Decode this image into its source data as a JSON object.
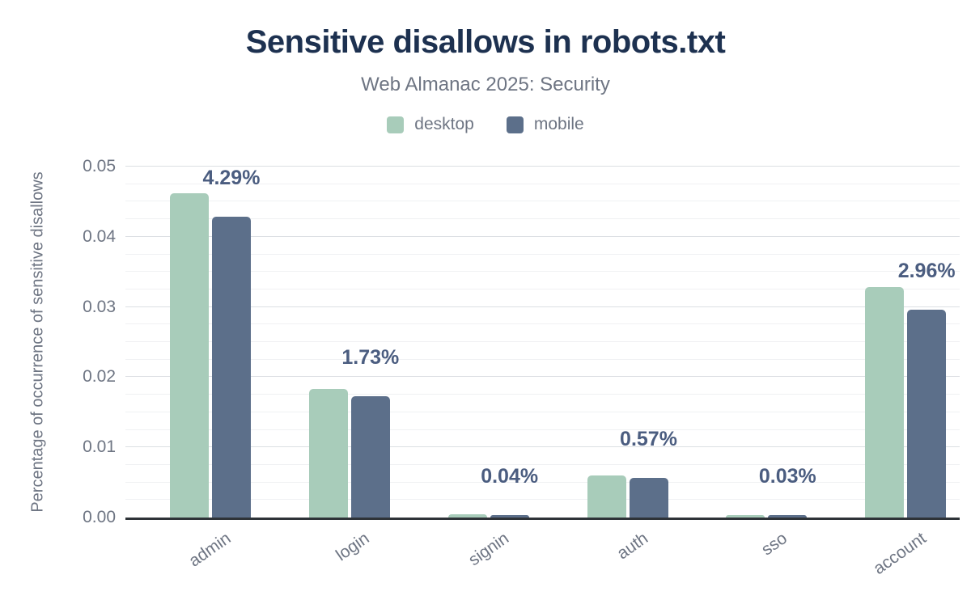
{
  "title": "Sensitive disallows in robots.txt",
  "subtitle": "Web Almanac 2025: Security",
  "y_axis_title": "Percentage of occurrence of sensitive disallows",
  "colors": {
    "title": "#1d3150",
    "subtitle_gray": "#6e7583",
    "value_label": "#4b5d80",
    "axis_line": "#2e3338",
    "gridline_major": "#dcdfe3",
    "gridline_minor": "#f0f1f3",
    "desktop": "#a8ccba",
    "mobile": "#5c6f8a"
  },
  "chart_data": {
    "type": "bar",
    "title": "Sensitive disallows in robots.txt",
    "subtitle": "Web Almanac 2025: Security",
    "xlabel": "",
    "ylabel": "Percentage of occurrence of sensitive disallows",
    "categories": [
      "admin",
      "login",
      "signin",
      "auth",
      "sso",
      "account"
    ],
    "series": [
      {
        "name": "desktop",
        "color": "#a8ccba",
        "values": [
          0.0462,
          0.0183,
          0.0005,
          0.006,
          0.0004,
          0.0328
        ]
      },
      {
        "name": "mobile",
        "color": "#5c6f8a",
        "values": [
          0.0429,
          0.0173,
          0.0004,
          0.0057,
          0.0003,
          0.0296
        ]
      }
    ],
    "value_labels": {
      "annotated_series": "mobile",
      "texts": [
        "4.29%",
        "1.73%",
        "0.04%",
        "0.57%",
        "0.03%",
        "2.96%"
      ]
    },
    "ylim": [
      0,
      0.05
    ],
    "ytick_step": 0.01,
    "ytick_labels": [
      "0.00",
      "0.01",
      "0.02",
      "0.03",
      "0.04",
      "0.05"
    ],
    "minor_gridline_step": 0.0025,
    "grid": "horizontal",
    "legend_position": "top",
    "legend": [
      "desktop",
      "mobile"
    ]
  }
}
